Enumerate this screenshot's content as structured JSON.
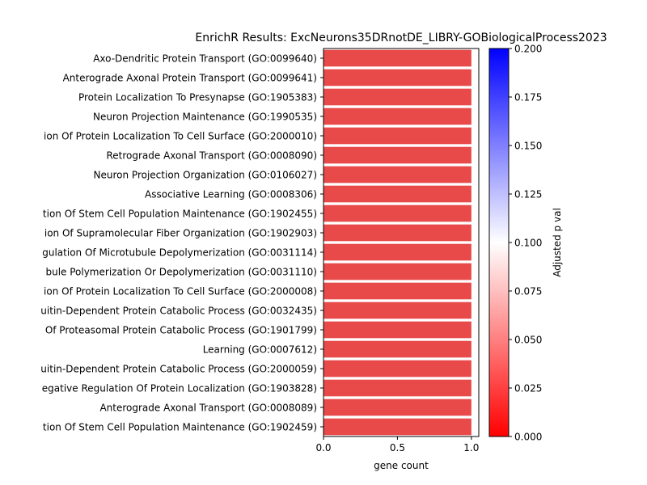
{
  "chart_data": {
    "type": "bar",
    "orientation": "horizontal",
    "title": "EnrichR Results: ExcNeurons35DRnotDE_LIBRY-GOBiologicalProcess2023",
    "xlabel": "gene count",
    "xlim": [
      0,
      1.05
    ],
    "xticks": [
      "0.0",
      "0.5",
      "1.0"
    ],
    "categories": [
      "Axo-Dendritic Protein Transport (GO:0099640)",
      "Anterograde Axonal Protein Transport (GO:0099641)",
      "Protein Localization To Presynapse (GO:1905383)",
      "Neuron Projection Maintenance (GO:1990535)",
      "ion Of Protein Localization To Cell Surface (GO:2000010)",
      "Retrograde Axonal Transport (GO:0008090)",
      "Neuron Projection Organization (GO:0106027)",
      "Associative Learning (GO:0008306)",
      "tion Of Stem Cell Population Maintenance (GO:1902455)",
      "ion Of Supramolecular Fiber Organization (GO:1902903)",
      "gulation Of Microtubule Depolymerization (GO:0031114)",
      "bule Polymerization Or Depolymerization (GO:0031110)",
      "ion Of Protein Localization To Cell Surface (GO:2000008)",
      "uitin-Dependent Protein Catabolic Process (GO:0032435)",
      "Of Proteasomal Protein Catabolic Process (GO:1901799)",
      "Learning (GO:0007612)",
      "uitin-Dependent Protein Catabolic Process (GO:2000059)",
      "egative Regulation Of Protein Localization (GO:1903828)",
      "Anterograde Axonal Transport (GO:0008089)",
      "tion Of Stem Cell Population Maintenance (GO:1902459)"
    ],
    "values": [
      1,
      1,
      1,
      1,
      1,
      1,
      1,
      1,
      1,
      1,
      1,
      1,
      1,
      1,
      1,
      1,
      1,
      1,
      1,
      1
    ],
    "bar_color": "#e84a4a",
    "colorbar": {
      "label": "Adjusted p val",
      "range": [
        0,
        0.2
      ],
      "ticks": [
        "0.000",
        "0.025",
        "0.050",
        "0.075",
        "0.100",
        "0.125",
        "0.150",
        "0.175",
        "0.200"
      ],
      "colors": [
        "#ff0000",
        "#ffffff",
        "#0000ff"
      ]
    }
  }
}
